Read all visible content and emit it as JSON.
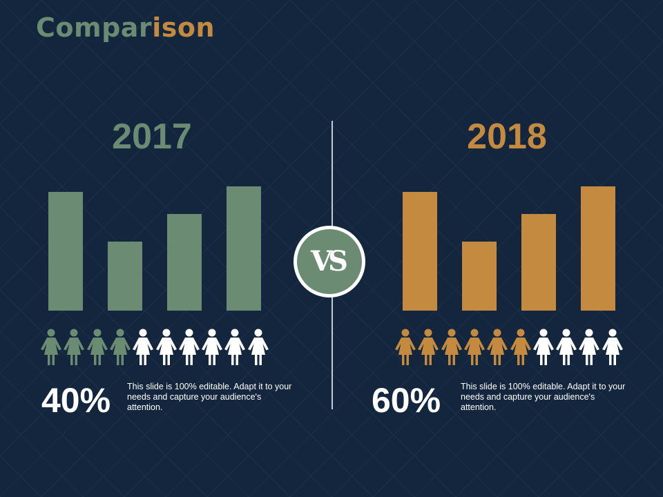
{
  "title_part1": "Compar",
  "title_part2": "ison",
  "vs_label": "VS",
  "colors": {
    "background": "#14263d",
    "green": "#6b8b73",
    "orange": "#c48a3f",
    "white": "#ffffff"
  },
  "chart_data": [
    {
      "type": "bar",
      "title": "2017",
      "values": [
        86,
        50,
        70,
        90
      ],
      "ylim": [
        0,
        95
      ],
      "color": "#6b8b73",
      "people_total": 10,
      "people_highlighted": 4,
      "percent": "40%",
      "description": "This slide is 100% editable. Adapt it to your needs and capture your audience's attention."
    },
    {
      "type": "bar",
      "title": "2018",
      "values": [
        86,
        50,
        70,
        90
      ],
      "ylim": [
        0,
        95
      ],
      "color": "#c48a3f",
      "people_total": 10,
      "people_highlighted": 6,
      "percent": "60%",
      "description": "This slide is 100% editable. Adapt it to your needs and capture your audience's attention."
    }
  ]
}
